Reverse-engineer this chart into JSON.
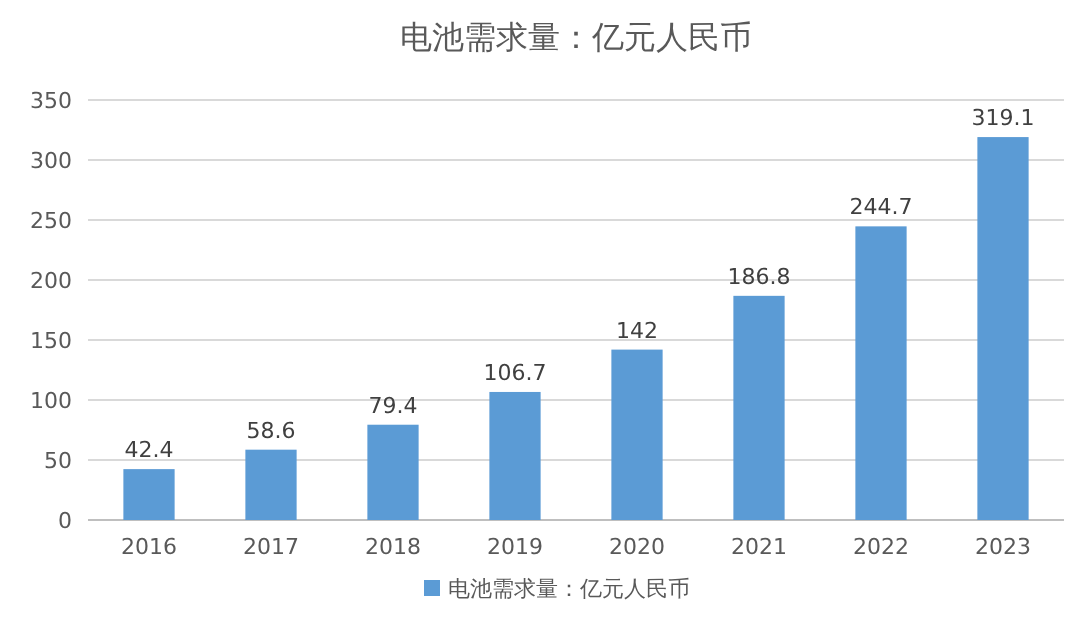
{
  "chart_data": {
    "type": "bar",
    "title": "电池需求量：亿元人民币",
    "categories": [
      "2016",
      "2017",
      "2018",
      "2019",
      "2020",
      "2021",
      "2022",
      "2023"
    ],
    "series": [
      {
        "name": "电池需求量：亿元人民币",
        "color": "#5b9bd5",
        "values": [
          42.4,
          58.6,
          79.4,
          106.7,
          142,
          186.8,
          244.7,
          319.1
        ]
      }
    ],
    "ylim": [
      0,
      350
    ],
    "yticks": [
      0,
      50,
      100,
      150,
      200,
      250,
      300,
      350
    ],
    "grid": "y",
    "legend": "bottom",
    "data_labels": true
  }
}
